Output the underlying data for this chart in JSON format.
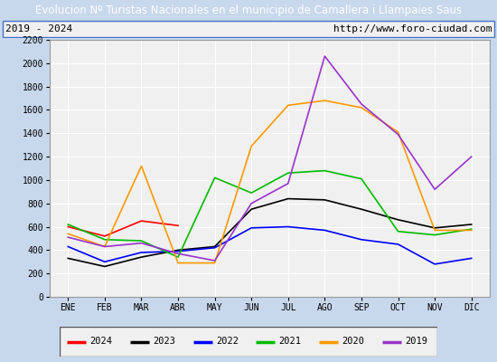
{
  "title": "Evolucion Nº Turistas Nacionales en el municipio de Camallera i Llampaies Saus",
  "subtitle_left": "2019 - 2024",
  "subtitle_right": "http://www.foro-ciudad.com",
  "x_labels": [
    "ENE",
    "FEB",
    "MAR",
    "ABR",
    "MAY",
    "JUN",
    "JUL",
    "AGO",
    "SEP",
    "OCT",
    "NOV",
    "DIC"
  ],
  "ylim": [
    0,
    2200
  ],
  "yticks": [
    0,
    200,
    400,
    600,
    800,
    1000,
    1200,
    1400,
    1600,
    1800,
    2000,
    2200
  ],
  "series": {
    "2024": {
      "color": "#ff0000",
      "data": [
        600,
        520,
        650,
        610,
        null,
        null,
        null,
        null,
        null,
        null,
        null,
        null
      ]
    },
    "2023": {
      "color": "#000000",
      "data": [
        330,
        260,
        340,
        400,
        430,
        750,
        840,
        830,
        750,
        660,
        590,
        620
      ]
    },
    "2022": {
      "color": "#0000ff",
      "data": [
        430,
        300,
        380,
        390,
        420,
        590,
        600,
        570,
        490,
        450,
        280,
        330
      ]
    },
    "2021": {
      "color": "#00bb00",
      "data": [
        620,
        490,
        480,
        340,
        1020,
        890,
        1060,
        1080,
        1010,
        560,
        530,
        580
      ]
    },
    "2020": {
      "color": "#ff9900",
      "data": [
        540,
        430,
        1120,
        290,
        290,
        1290,
        1640,
        1680,
        1620,
        1410,
        570,
        570
      ]
    },
    "2019": {
      "color": "#9933cc",
      "data": [
        510,
        430,
        460,
        370,
        310,
        800,
        970,
        2060,
        1650,
        1390,
        920,
        1200
      ]
    }
  },
  "title_bg_color": "#4472c4",
  "title_font_color": "#ffffff",
  "plot_bg_color": "#f0f0f0",
  "outer_bg_color": "#c8d8ec",
  "grid_color": "#ffffff",
  "border_color": "#4472c4",
  "legend_border": "#555555"
}
